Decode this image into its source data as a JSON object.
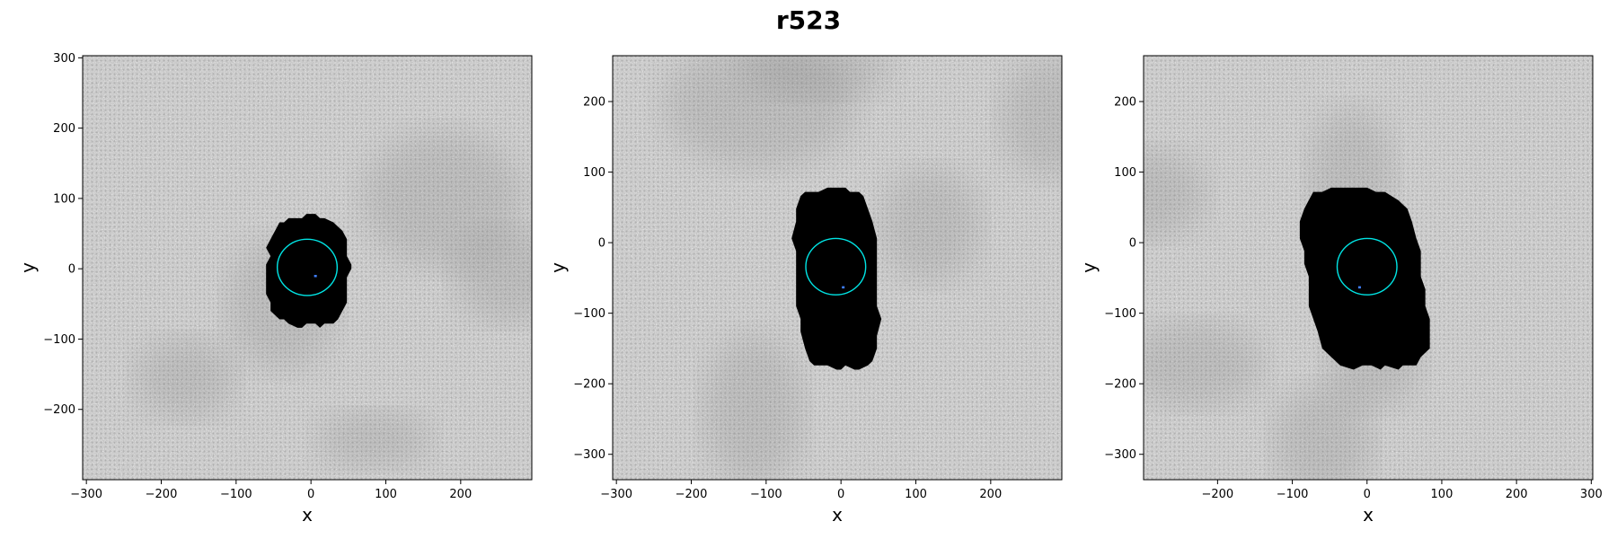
{
  "figure_title": "r523",
  "chart_data": [
    {
      "type": "image",
      "title": "",
      "xlabel": "x",
      "ylabel": "y",
      "xlim": [
        -305,
        295
      ],
      "ylim": [
        -300,
        303
      ],
      "xticks": [
        -300,
        -200,
        -100,
        0,
        100,
        200
      ],
      "yticks": [
        300,
        200,
        100,
        0,
        -100,
        -200
      ],
      "grid": false,
      "background": "grayscale noise image",
      "blob": {
        "color": "#000000",
        "xmin": -60,
        "xmax": 52,
        "ymin": -83,
        "ymax": 77
      },
      "circle": {
        "cx": -5,
        "cy": 2,
        "r": 40,
        "color": "#00e5e5"
      },
      "marker": {
        "x": 6,
        "y": -10,
        "color": "#3f7fff"
      }
    },
    {
      "type": "image",
      "title": "",
      "xlabel": "x",
      "ylabel": "y",
      "xlim": [
        -305,
        295
      ],
      "ylim": [
        -336,
        265
      ],
      "xticks": [
        -300,
        -200,
        -100,
        0,
        100,
        200
      ],
      "yticks": [
        200,
        100,
        0,
        -100,
        -200,
        -300
      ],
      "grid": false,
      "background": "grayscale noise image",
      "blob": {
        "color": "#000000",
        "xmin": -62,
        "xmax": 50,
        "ymin": -183,
        "ymax": 82
      },
      "circle": {
        "cx": -7,
        "cy": -34,
        "r": 40,
        "color": "#00e5e5"
      },
      "marker": {
        "x": 3,
        "y": -63,
        "color": "#3f7fff"
      }
    },
    {
      "type": "image",
      "title": "",
      "xlabel": "x",
      "ylabel": "y",
      "xlim": [
        -299,
        302
      ],
      "ylim": [
        -336,
        265
      ],
      "xticks": [
        -200,
        -100,
        0,
        100,
        200,
        300
      ],
      "yticks": [
        200,
        100,
        0,
        -100,
        -200,
        -300
      ],
      "grid": false,
      "background": "grayscale noise image",
      "blob": {
        "color": "#000000",
        "xmin": -85,
        "xmax": 78,
        "ymin": -183,
        "ymax": 82
      },
      "circle": {
        "cx": 0,
        "cy": -34,
        "r": 40,
        "color": "#00e5e5"
      },
      "marker": {
        "x": -10,
        "y": -63,
        "color": "#3f7fff"
      }
    }
  ]
}
